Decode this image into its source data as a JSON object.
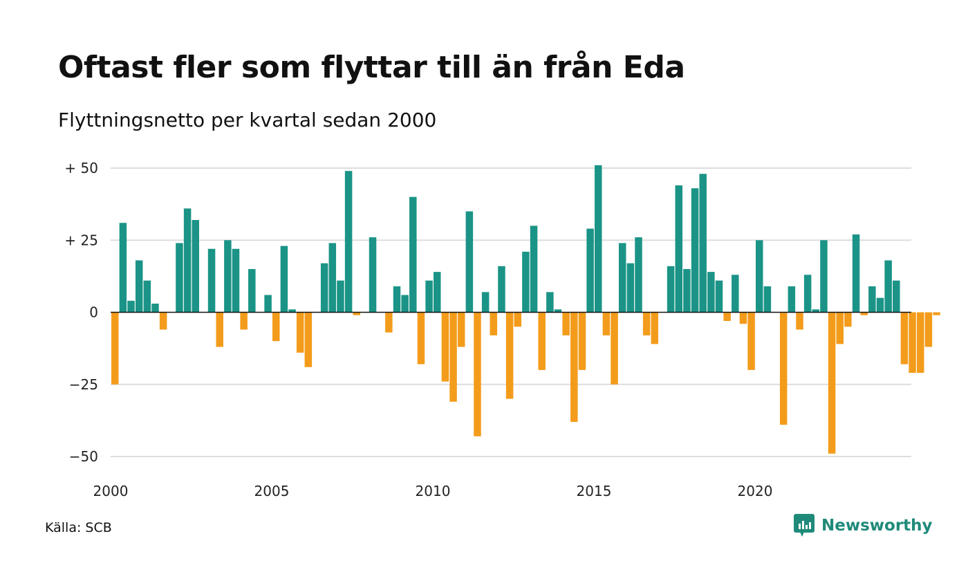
{
  "title": "Oftast fler som flyttar till än från Eda",
  "subtitle": "Flyttningsnetto per kvartal sedan 2000",
  "source": "Källa: SCB",
  "brand": {
    "name": "Newsworthy",
    "icon": "newsworthy-logo-icon"
  },
  "colors": {
    "positive": "#1b9487",
    "negative": "#f39c1b",
    "grid": "#dddddd",
    "axis": "#111111"
  },
  "chart_data": {
    "type": "bar",
    "title": "Oftast fler som flyttar till än från Eda",
    "subtitle": "Flyttningsnetto per kvartal sedan 2000",
    "xlabel": "",
    "ylabel": "",
    "ylim": [
      -50,
      50
    ],
    "xlim": [
      2000,
      2024.75
    ],
    "grid": true,
    "yticks": [
      {
        "value": 50,
        "label": "+ 50"
      },
      {
        "value": 25,
        "label": "+ 25"
      },
      {
        "value": 0,
        "label": "0"
      },
      {
        "value": -25,
        "label": "−25"
      },
      {
        "value": -50,
        "label": "−50"
      }
    ],
    "xticks": [
      {
        "value": 2000,
        "label": "2000"
      },
      {
        "value": 2005,
        "label": "2005"
      },
      {
        "value": 2010,
        "label": "2010"
      },
      {
        "value": 2015,
        "label": "2015"
      },
      {
        "value": 2020,
        "label": "2020"
      }
    ],
    "start": {
      "year": 2000,
      "quarter": 1
    },
    "values": [
      -25,
      31,
      4,
      18,
      11,
      3,
      -6,
      0,
      24,
      36,
      32,
      0,
      22,
      -12,
      25,
      22,
      -6,
      15,
      0,
      6,
      -10,
      23,
      1,
      -14,
      -19,
      0,
      17,
      24,
      11,
      49,
      -1,
      0,
      26,
      0,
      -7,
      9,
      6,
      40,
      -18,
      11,
      14,
      -24,
      -31,
      -12,
      35,
      -43,
      7,
      -8,
      16,
      -30,
      -5,
      21,
      30,
      -20,
      7,
      1,
      -8,
      -38,
      -20,
      29,
      51,
      -8,
      -25,
      24,
      17,
      26,
      -8,
      -11,
      0,
      16,
      44,
      15,
      43,
      48,
      14,
      11,
      -3,
      13,
      -4,
      -20,
      25,
      9,
      0,
      -39,
      9,
      -6,
      13,
      1,
      25,
      -49,
      -11,
      -5,
      27,
      -1,
      9,
      5,
      18,
      11,
      -18,
      -21,
      -21,
      -12,
      -1
    ]
  }
}
